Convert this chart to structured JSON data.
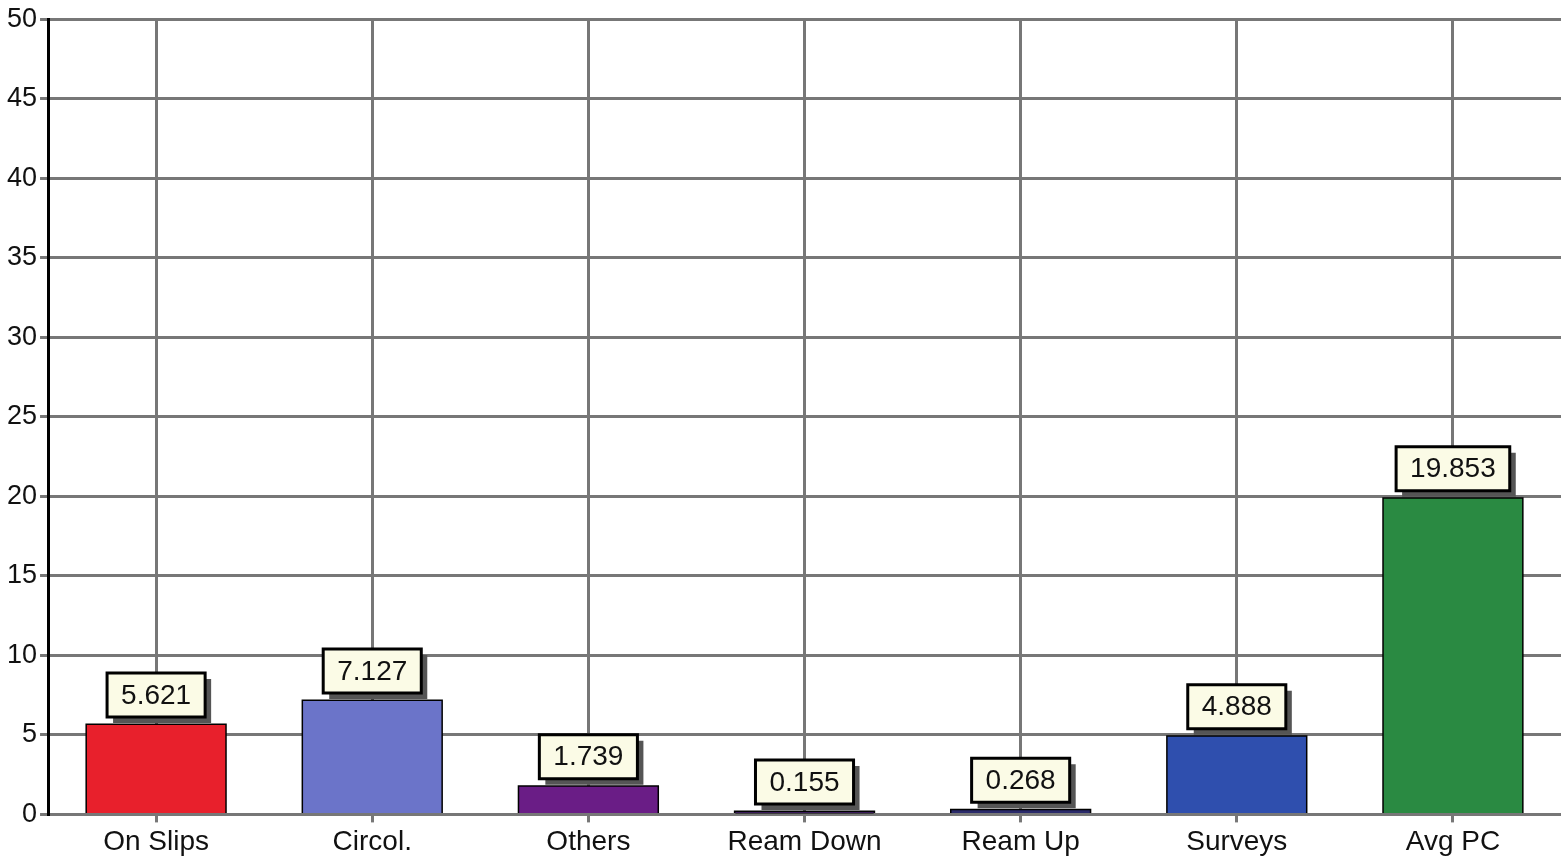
{
  "chart_data": {
    "type": "bar",
    "categories": [
      "On Slips",
      "Circol.",
      "Others",
      "Ream Down",
      "Ream Up",
      "Surveys",
      "Avg PC"
    ],
    "values": [
      5.621,
      7.127,
      1.739,
      0.155,
      0.268,
      4.888,
      19.853
    ],
    "colors": [
      "#e8202c",
      "#6b74c9",
      "#6a1d86",
      "#3a1a5a",
      "#2a2a6a",
      "#2f4fae",
      "#2a8a42"
    ],
    "ylim": [
      0,
      50
    ],
    "yticks": [
      0,
      5,
      10,
      15,
      20,
      25,
      30,
      35,
      40,
      45,
      50
    ],
    "grid": true,
    "legend": false,
    "data_labels": true
  }
}
